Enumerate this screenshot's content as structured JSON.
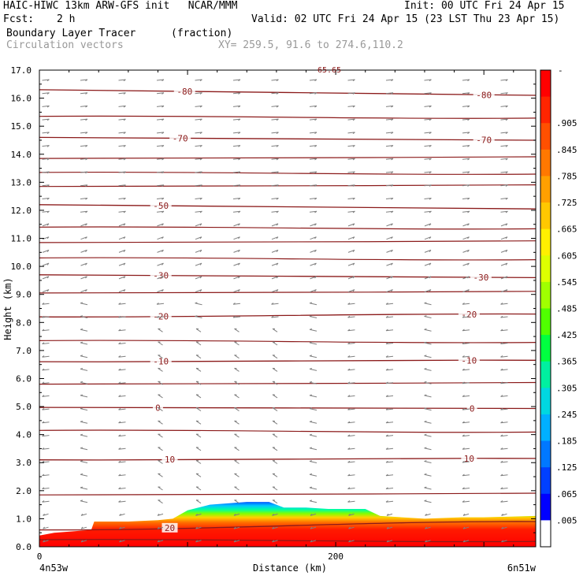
{
  "header": {
    "title_left": "HAIC-HIWC 13km ARW-GFS init   NCAR/MMM",
    "init": "Init: 00 UTC Fri 24 Apr 15",
    "fcst_label": "Fcst:",
    "fcst_value": "2 h",
    "valid": "Valid: 02 UTC Fri 24 Apr 15 (23 LST Thu 23 Apr 15)",
    "field": "Boundary Layer Tracer",
    "units": "(fraction)",
    "vectors": "Circulation vectors",
    "xy": "XY= 259.5, 91.6 to 274.6,110.2"
  },
  "colors": {
    "contour": "#8b1a1a",
    "vector": "#808080",
    "frame": "#000000"
  },
  "chart_data": {
    "type": "heatmap",
    "title": "Boundary Layer Tracer",
    "ylabel": "Height (km)",
    "xlabel": "Distance (km)",
    "xlim": [
      0,
      335
    ],
    "ylim": [
      0,
      17
    ],
    "y_ticks": [
      "0.0",
      "1.0",
      "2.0",
      "3.0",
      "4.0",
      "5.0",
      "6.0",
      "7.0",
      "8.0",
      "9.0",
      "10.0",
      "11.0",
      "12.0",
      "13.0",
      "14.0",
      "15.0",
      "16.0",
      "17.0"
    ],
    "x_ticks": [
      {
        "value": 0,
        "label": "0"
      },
      {
        "value": 200,
        "label": "200"
      }
    ],
    "x_endpoints": {
      "left": "4n53w",
      "right": "6n51w"
    },
    "tracer_top": {
      "x": [
        0,
        10,
        35,
        37,
        60,
        80,
        90,
        100,
        115,
        140,
        155,
        165,
        180,
        195,
        210,
        220,
        230,
        260,
        285,
        300,
        335
      ],
      "y": [
        0.4,
        0.5,
        0.6,
        0.9,
        0.9,
        0.95,
        1.0,
        1.3,
        1.5,
        1.6,
        1.6,
        1.4,
        1.4,
        1.35,
        1.35,
        1.35,
        1.1,
        1.0,
        1.05,
        1.05,
        1.1
      ]
    },
    "colorbar": {
      "labels": [
        ".905",
        ".845",
        ".785",
        ".725",
        ".665",
        ".605",
        ".545",
        ".485",
        ".425",
        ".365",
        ".305",
        ".245",
        ".185",
        ".125",
        ".065",
        ".005"
      ],
      "top_label": "-",
      "colors": [
        "#ff0000",
        "#ff2500",
        "#ff5000",
        "#ff7800",
        "#ffa000",
        "#ffc800",
        "#fff000",
        "#ddff00",
        "#a0ff00",
        "#50ff00",
        "#00ff40",
        "#00f0a0",
        "#00d8e0",
        "#00b0ff",
        "#0078ff",
        "#0040ff",
        "#0000ff",
        "#ffffff"
      ]
    },
    "temperature_contours": [
      {
        "value": 0,
        "y_left": 4.97,
        "y_right": 4.93,
        "labels": [
          {
            "text": "0",
            "x": 80
          },
          {
            "text": "0",
            "x": 292
          }
        ]
      },
      {
        "value": 10,
        "y_left": 3.1,
        "y_right": 3.15,
        "labels": [
          {
            "text": "10",
            "x": 88
          },
          {
            "text": "10",
            "x": 290
          }
        ]
      },
      {
        "value": 20,
        "y_left": 0.6,
        "y_right": 0.9,
        "labels": [
          {
            "text": "20",
            "x": 88
          }
        ]
      },
      {
        "value": -10,
        "y_left": 6.6,
        "y_right": 6.65,
        "labels": [
          {
            "text": "-10",
            "x": 82
          },
          {
            "text": "-10",
            "x": 290
          }
        ]
      },
      {
        "value": -20,
        "y_left": 8.2,
        "y_right": 8.3,
        "labels": [
          {
            "text": "-20",
            "x": 82
          },
          {
            "text": "-20",
            "x": 290
          }
        ]
      },
      {
        "value": -30,
        "y_left": 9.7,
        "y_right": 9.6,
        "labels": [
          {
            "text": "-30",
            "x": 82
          },
          {
            "text": "-30",
            "x": 298
          }
        ]
      },
      {
        "value": -50,
        "y_left": 12.2,
        "y_right": 12.05,
        "labels": [
          {
            "text": "-50",
            "x": 82
          }
        ]
      },
      {
        "value": -70,
        "y_left": 14.6,
        "y_right": 14.5,
        "labels": [
          {
            "text": "-70",
            "x": 95
          },
          {
            "text": "-70",
            "x": 300
          }
        ]
      },
      {
        "value": -80,
        "y_left": 16.3,
        "y_right": 16.1,
        "labels": [
          {
            "text": "-80",
            "x": 98
          },
          {
            "text": "-80",
            "x": 300
          }
        ]
      }
    ],
    "extra_contours_y": [
      0.25,
      1.85,
      4.15,
      5.8,
      7.35,
      9.05,
      10.3,
      10.85,
      11.4,
      12.85,
      13.35,
      13.85,
      15.35
    ],
    "top_partial_label": "65.65"
  }
}
